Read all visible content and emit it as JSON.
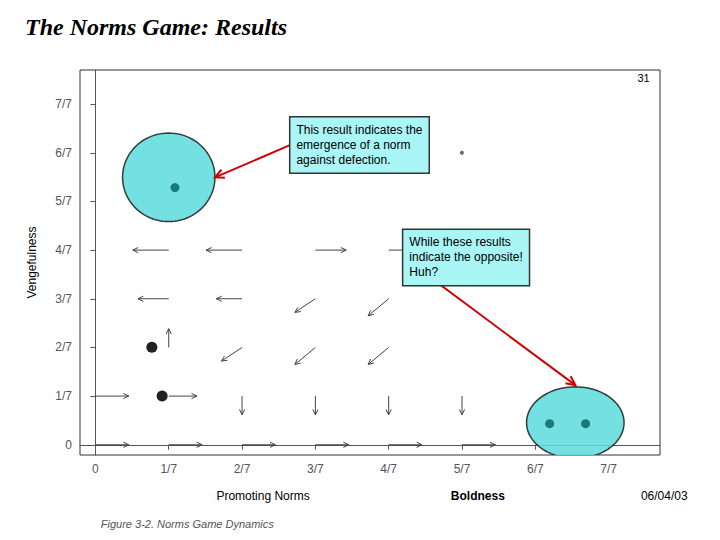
{
  "chart_data": {
    "type": "vector_field",
    "title": "The Norms Game: Results",
    "xlabel": "Promoting Norms",
    "ylabel": "Vengefulness",
    "caption": "Figure 3-2. Norms Game Dynamics",
    "xlim": [
      -0.03,
      1.1
    ],
    "ylim": [
      -0.03,
      1.1
    ],
    "xticks": [
      0,
      {
        "value": 0.1429,
        "label": "1/7"
      },
      {
        "value": 0.2857,
        "label": "2/7"
      },
      {
        "value": 0.4286,
        "label": "3/7"
      },
      {
        "value": 0.5714,
        "label": "4/7"
      },
      {
        "value": 0.7143,
        "label": "5/7"
      },
      {
        "value": 0.8571,
        "label": "6/7"
      },
      {
        "value": 1.0,
        "label": "7/7"
      }
    ],
    "yticks": [
      0,
      {
        "value": 0.1429,
        "label": "1/7"
      },
      {
        "value": 0.2857,
        "label": "2/7"
      },
      {
        "value": 0.4286,
        "label": "3/7"
      },
      {
        "value": 0.5714,
        "label": "4/7"
      },
      {
        "value": 0.7143,
        "label": "5/7"
      },
      {
        "value": 0.8571,
        "label": "6/7"
      },
      {
        "value": 1.0,
        "label": "7/7"
      }
    ],
    "grid": false,
    "vectors": [
      [
        0.1429,
        0.5714,
        -0.07,
        0.0
      ],
      [
        0.2857,
        0.5714,
        -0.07,
        0.0
      ],
      [
        0.4286,
        0.5714,
        0.06,
        0.0
      ],
      [
        0.5714,
        0.5714,
        0.06,
        0.0
      ],
      [
        0.1429,
        0.4286,
        -0.06,
        0.0
      ],
      [
        0.2857,
        0.4286,
        -0.05,
        0.0
      ],
      [
        0.4286,
        0.4286,
        -0.04,
        -0.04
      ],
      [
        0.5714,
        0.4286,
        -0.04,
        -0.05
      ],
      [
        0.1429,
        0.2857,
        0.0,
        0.055
      ],
      [
        0.2857,
        0.2857,
        -0.04,
        -0.04
      ],
      [
        0.4286,
        0.2857,
        -0.04,
        -0.05
      ],
      [
        0.5714,
        0.2857,
        -0.04,
        -0.05
      ],
      [
        0.0,
        0.1429,
        0.065,
        0.0
      ],
      [
        0.1429,
        0.1429,
        0.055,
        0.0
      ],
      [
        0.2857,
        0.1429,
        0.0,
        -0.055
      ],
      [
        0.4286,
        0.1429,
        0.0,
        -0.055
      ],
      [
        0.5714,
        0.1429,
        0.0,
        -0.055
      ],
      [
        0.7143,
        0.1429,
        0.0,
        -0.055
      ],
      [
        0.0,
        0.0,
        0.065,
        0.0
      ],
      [
        0.1429,
        0.0,
        0.065,
        0.0
      ],
      [
        0.2857,
        0.0,
        0.065,
        0.0
      ],
      [
        0.4286,
        0.0,
        0.065,
        0.0
      ],
      [
        0.5714,
        0.0,
        0.065,
        0.0
      ],
      [
        0.7143,
        0.0,
        0.065,
        0.0
      ]
    ],
    "ellipses": [
      {
        "center": [
          0.1429,
          0.785
        ],
        "width": 0.18,
        "height": 0.26,
        "color": "#60DDDD"
      },
      {
        "center": [
          0.935,
          0.065
        ],
        "width": 0.19,
        "height": 0.21,
        "color": "#60DDDD"
      }
    ],
    "points": [
      {
        "color": "#1a7a7a",
        "x": [
          0.155,
          0.885,
          0.955
        ],
        "y": [
          0.755,
          0.062,
          0.062
        ]
      },
      {
        "color": "#222222",
        "x": [
          0.11,
          0.13
        ],
        "y": [
          0.286,
          0.143
        ]
      },
      {
        "color": "#666666",
        "x": [
          0.714
        ],
        "y": [
          0.857
        ]
      }
    ],
    "annotations": [
      {
        "text": "This result indicates the\nemergence of a norm\nagainst defection.",
        "at": [
          0.38,
          0.88
        ],
        "target": [
          0.2329,
          0.785
        ]
      },
      {
        "text": "While these results\nindicate the opposite!\nHuh?",
        "at": [
          0.6,
          0.55
        ],
        "target": [
          0.935,
          0.175
        ]
      },
      {
        "text": "31",
        "at": [
          1.08,
          1.06
        ]
      },
      {
        "text": "Boldness"
      },
      {
        "text": "06/04/03"
      }
    ]
  }
}
